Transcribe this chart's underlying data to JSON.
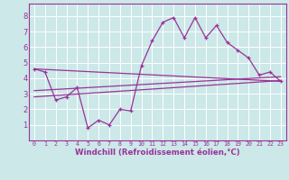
{
  "bg_color": "#cce8e8",
  "grid_color": "#ffffff",
  "line_color": "#993399",
  "xlabel": "Windchill (Refroidissement éolien,°C)",
  "xlim": [
    -0.5,
    23.5
  ],
  "ylim": [
    0,
    8.8
  ],
  "yticks": [
    1,
    2,
    3,
    4,
    5,
    6,
    7,
    8
  ],
  "xticks": [
    0,
    1,
    2,
    3,
    4,
    5,
    6,
    7,
    8,
    9,
    10,
    11,
    12,
    13,
    14,
    15,
    16,
    17,
    18,
    19,
    20,
    21,
    22,
    23
  ],
  "main_series_x": [
    0,
    1,
    2,
    3,
    4,
    5,
    6,
    7,
    8,
    9,
    10,
    11,
    12,
    13,
    14,
    15,
    16,
    17,
    18,
    19,
    20,
    21,
    22,
    23
  ],
  "main_series_y": [
    4.6,
    4.4,
    2.6,
    2.8,
    3.4,
    0.8,
    1.3,
    1.0,
    2.0,
    1.9,
    4.8,
    6.4,
    7.6,
    7.9,
    6.6,
    7.9,
    6.6,
    7.4,
    6.3,
    5.8,
    5.3,
    4.2,
    4.4,
    3.8
  ],
  "trend1_x": [
    0,
    23
  ],
  "trend1_y": [
    4.6,
    3.8
  ],
  "trend2_x": [
    0,
    23
  ],
  "trend2_y": [
    3.2,
    4.1
  ],
  "trend3_x": [
    0,
    23
  ],
  "trend3_y": [
    2.8,
    3.85
  ]
}
